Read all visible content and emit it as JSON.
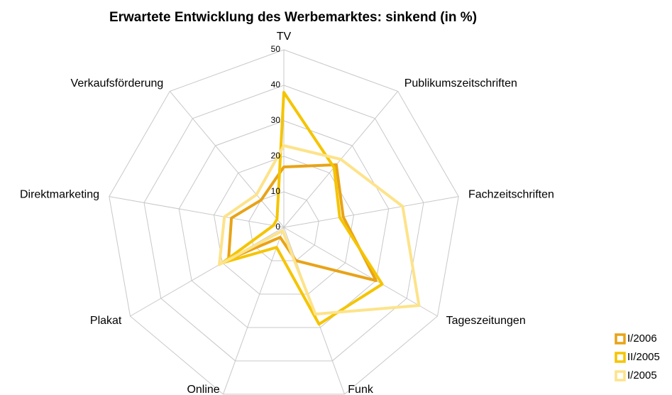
{
  "chart_data": {
    "type": "radar",
    "title": "Erwartete Entwicklung des Werbemarktes: sinkend (in %)",
    "categories": [
      "TV",
      "Publikumszeitschriften",
      "Fachzeitschriften",
      "Tageszeitungen",
      "Funk",
      "Online",
      "Plakat",
      "Direktmarketing",
      "Verkaufsförderung"
    ],
    "series": [
      {
        "name": "I/2006",
        "color": "#e8a317",
        "values": [
          17,
          23,
          17,
          30,
          10,
          3,
          18,
          15,
          10
        ]
      },
      {
        "name": "II/2005",
        "color": "#f5c400",
        "values": [
          38,
          22,
          16,
          32,
          29,
          6,
          20,
          3,
          3
        ]
      },
      {
        "name": "I/2005",
        "color": "#fde38a",
        "values": [
          23,
          25,
          34,
          44,
          26,
          1,
          21,
          17,
          12
        ]
      }
    ],
    "ylim": [
      0,
      50
    ],
    "yticks": [
      0,
      10,
      20,
      30,
      40,
      50
    ],
    "grid": true,
    "legend": "bottom-right"
  }
}
